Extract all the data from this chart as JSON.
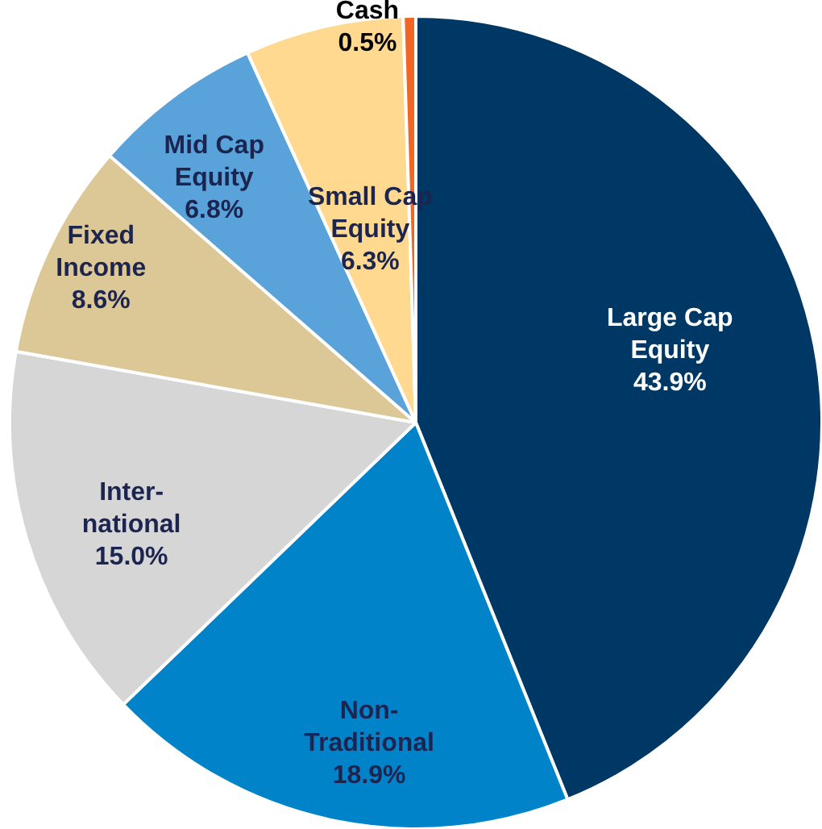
{
  "chart_data": {
    "type": "pie",
    "categories": [
      "Large Cap\nEquity",
      "Non-\nTraditional",
      "Inter-\nnational",
      "Fixed\nIncome",
      "Mid Cap\nEquity",
      "Small Cap\nEquity",
      "Cash"
    ],
    "values": [
      43.9,
      18.9,
      15.0,
      8.6,
      6.8,
      6.3,
      0.5
    ],
    "colors": [
      "#003865",
      "#0083c9",
      "#d6d6d6",
      "#dcc796",
      "#5aa3da",
      "#ffd990",
      "#f26522"
    ],
    "value_labels": [
      "43.9%",
      "18.9%",
      "15.0%",
      "8.6%",
      "6.8%",
      "6.3%",
      "0.5%"
    ],
    "legend": false
  }
}
